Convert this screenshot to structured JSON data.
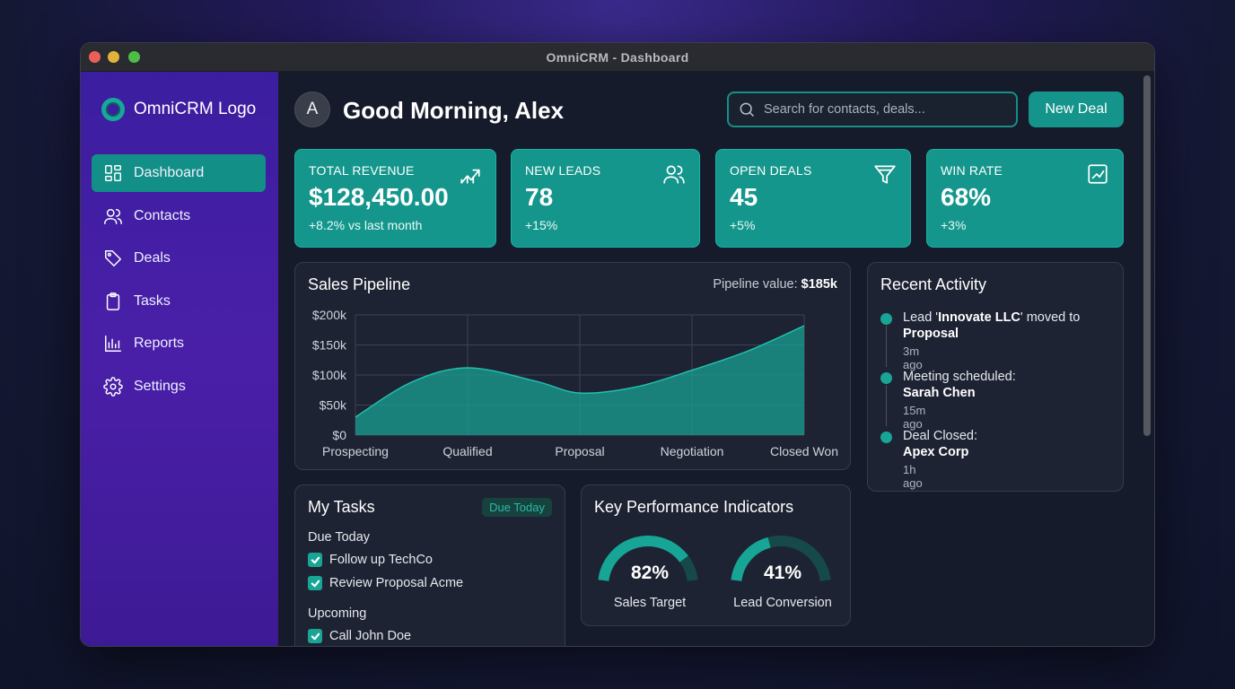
{
  "window": {
    "title": "OmniCRM - Dashboard"
  },
  "sidebar": {
    "logo": "OmniCRM Logo",
    "items": [
      {
        "label": "Dashboard",
        "icon": "dashboard-icon",
        "active": true
      },
      {
        "label": "Contacts",
        "icon": "users-icon"
      },
      {
        "label": "Deals",
        "icon": "tag-icon"
      },
      {
        "label": "Tasks",
        "icon": "clipboard-icon"
      },
      {
        "label": "Reports",
        "icon": "bar-chart-icon"
      },
      {
        "label": "Settings",
        "icon": "gear-icon"
      }
    ]
  },
  "header": {
    "avatar_initial": "A",
    "greeting": "Good Morning, Alex",
    "search_placeholder": "Search for contacts, deals...",
    "new_deal_label": "New Deal"
  },
  "kpis": [
    {
      "label": "TOTAL REVENUE",
      "value": "$128,450.00",
      "delta": "+8.2% vs last month",
      "icon": "trend-up-icon"
    },
    {
      "label": "NEW LEADS",
      "value": "78",
      "delta": "+15%",
      "icon": "users-icon"
    },
    {
      "label": "OPEN DEALS",
      "value": "45",
      "delta": "+5%",
      "icon": "funnel-icon"
    },
    {
      "label": "WIN RATE",
      "value": "68%",
      "delta": "+3%",
      "icon": "line-chart-icon"
    }
  ],
  "pipeline": {
    "title": "Sales Pipeline",
    "value_label": "Pipeline value:",
    "value": "$185k"
  },
  "chart_data": {
    "type": "area",
    "categories": [
      "Prospecting",
      "Qualified",
      "Proposal",
      "Negotiation",
      "Closed Won"
    ],
    "x": [
      0,
      0.5,
      1,
      1.6,
      2,
      2.5,
      3,
      3.5,
      4
    ],
    "y": [
      30,
      88,
      112,
      90,
      70,
      80,
      108,
      140,
      182
    ],
    "y_ticks": [
      "$0",
      "$50k",
      "$100k",
      "$150k",
      "$200k"
    ],
    "ylim": [
      0,
      200
    ],
    "unit": "thousands USD",
    "grid": true,
    "color": "#17a596"
  },
  "activity": {
    "title": "Recent Activity",
    "items": [
      {
        "pre": "Lead '",
        "bold1": "Innovate LLC",
        "mid": "' moved to ",
        "bold2": "Proposal",
        "time": "3m ago"
      },
      {
        "pre": "Meeting scheduled: ",
        "bold1": "Sarah Chen",
        "mid": "",
        "bold2": "",
        "time": "15m ago"
      },
      {
        "pre": "Deal Closed: ",
        "bold1": "Apex Corp",
        "mid": "",
        "bold2": "",
        "time": "1h ago"
      }
    ]
  },
  "tasks": {
    "title": "My Tasks",
    "badge": "Due Today",
    "due_today_label": "Due Today",
    "due_today": [
      "Follow up TechCo",
      "Review Proposal Acme"
    ],
    "upcoming_label": "Upcoming",
    "upcoming": [
      "Call John Doe"
    ]
  },
  "kpi_panel": {
    "title": "Key Performance Indicators",
    "gauges": [
      {
        "value_label": "82%",
        "fraction": 0.82,
        "label": "Sales Target"
      },
      {
        "value_label": "41%",
        "fraction": 0.41,
        "label": "Lead Conversion"
      }
    ]
  },
  "colors": {
    "accent": "#14948a",
    "sidebar": "#4a1fa8",
    "background": "#161b2b"
  }
}
